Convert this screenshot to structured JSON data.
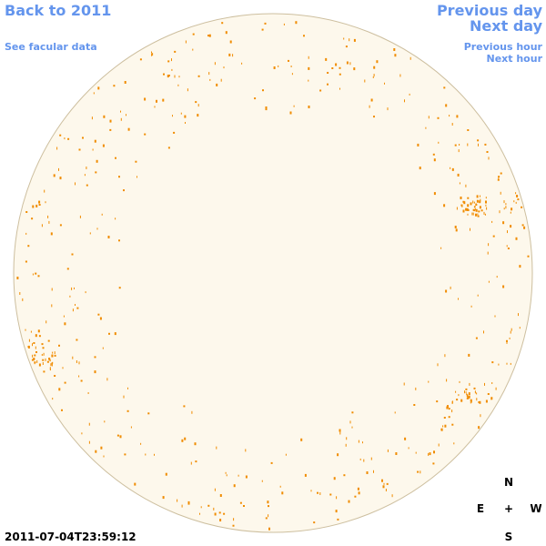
{
  "links": {
    "back": "Back to 2011",
    "facular": "See facular data",
    "previous_day": "Previous day",
    "next_day": "Next day",
    "previous_hour": "Previous hour",
    "next_hour": "Next hour"
  },
  "timestamp": "2011-07-04T23:59:12",
  "compass": {
    "north": "N",
    "east": "E",
    "center": "+",
    "west": "W",
    "south": "S"
  }
}
